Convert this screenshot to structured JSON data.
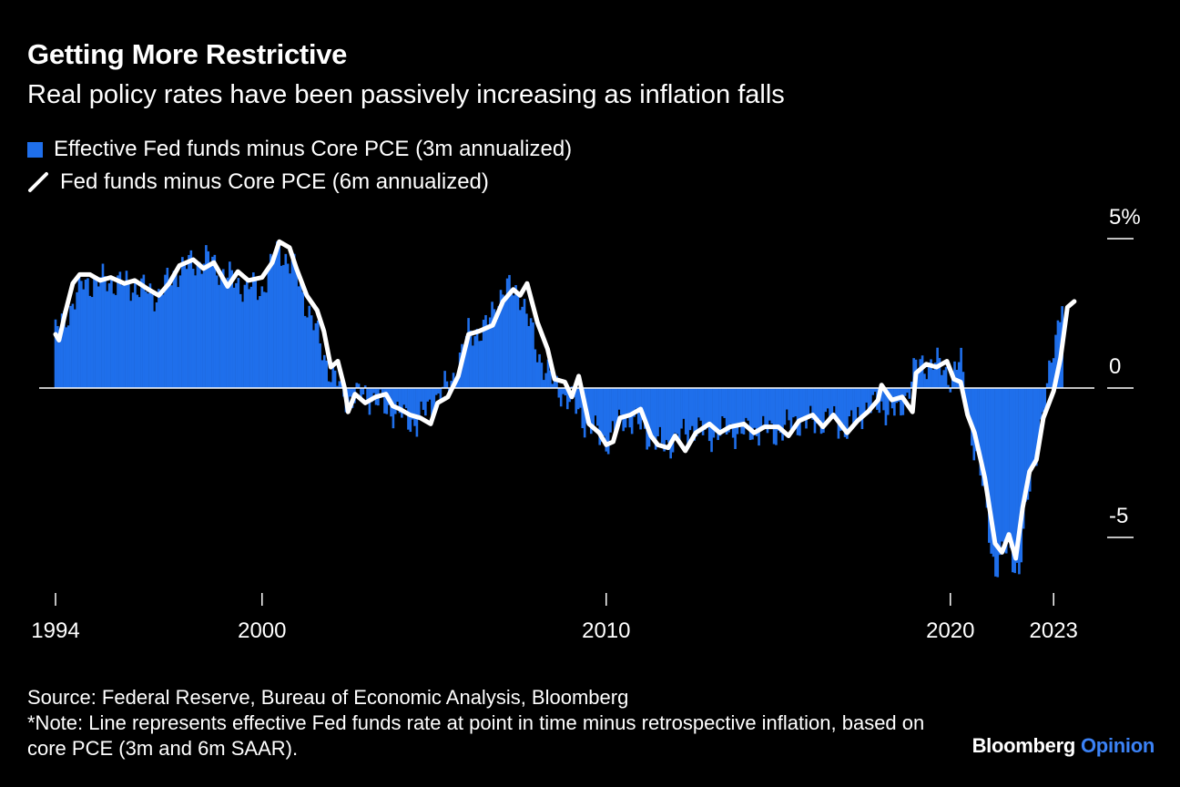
{
  "title": "Getting More Restrictive",
  "subtitle": "Real policy rates have been passively increasing as inflation falls",
  "colors": {
    "background": "#000000",
    "bar": "#1f6feb",
    "line": "#ffffff",
    "brand_accent": "#3b82f6"
  },
  "source": "Source: Federal Reserve, Bureau of Economic Analysis, Bloomberg",
  "note": "*Note: Line represents effective Fed funds rate at point in time minus retrospective inflation, based on core PCE (3m and 6m SAAR).",
  "brand": {
    "name": "Bloomberg",
    "section": "Opinion"
  },
  "chart_data": {
    "type": "bar",
    "legend_placement": "top-left",
    "grid": false,
    "ylim": [
      -6.5,
      5.5
    ],
    "xlim": [
      1993.6,
      2023.7
    ],
    "y_tick_labels": [
      {
        "value": 5,
        "label": "5%"
      },
      {
        "value": 0,
        "label": "0"
      },
      {
        "value": -5,
        "label": "-5"
      }
    ],
    "x_tick_labels": [
      {
        "value": 1994,
        "label": "1994"
      },
      {
        "value": 2000,
        "label": "2000"
      },
      {
        "value": 2010,
        "label": "2010"
      },
      {
        "value": 2020,
        "label": "2020"
      },
      {
        "value": 2023,
        "label": "2023"
      }
    ],
    "series": [
      {
        "name": "Effective Fed funds minus Core PCE (3m annualized)",
        "kind": "bar",
        "step": 0.125,
        "anchors": [
          [
            1994.0,
            1.8
          ],
          [
            1994.4,
            2.6
          ],
          [
            1994.8,
            3.5
          ],
          [
            1995.5,
            3.6
          ],
          [
            1996.3,
            3.4
          ],
          [
            1997.0,
            3.1
          ],
          [
            1997.5,
            3.9
          ],
          [
            1998.0,
            4.2
          ],
          [
            1998.5,
            4.3
          ],
          [
            1999.0,
            3.7
          ],
          [
            1999.5,
            3.4
          ],
          [
            2000.0,
            3.3
          ],
          [
            2000.5,
            4.7
          ],
          [
            2001.0,
            3.8
          ],
          [
            2001.5,
            2.1
          ],
          [
            2002.0,
            0.5
          ],
          [
            2002.5,
            -0.4
          ],
          [
            2003.0,
            -0.2
          ],
          [
            2003.5,
            -0.6
          ],
          [
            2004.0,
            -0.9
          ],
          [
            2004.5,
            -1.2
          ],
          [
            2005.0,
            -0.4
          ],
          [
            2005.5,
            0.2
          ],
          [
            2006.0,
            1.8
          ],
          [
            2006.5,
            2.0
          ],
          [
            2007.0,
            3.3
          ],
          [
            2007.5,
            3.2
          ],
          [
            2008.0,
            1.2
          ],
          [
            2008.5,
            0.1
          ],
          [
            2009.0,
            -0.5
          ],
          [
            2009.5,
            -1.3
          ],
          [
            2010.0,
            -1.8
          ],
          [
            2010.5,
            -1.0
          ],
          [
            2011.0,
            -1.3
          ],
          [
            2011.5,
            -1.9
          ],
          [
            2012.0,
            -1.8
          ],
          [
            2012.5,
            -1.3
          ],
          [
            2013.0,
            -1.6
          ],
          [
            2013.5,
            -1.4
          ],
          [
            2014.0,
            -1.5
          ],
          [
            2014.5,
            -1.4
          ],
          [
            2015.0,
            -1.5
          ],
          [
            2015.5,
            -1.1
          ],
          [
            2016.0,
            -1.2
          ],
          [
            2016.5,
            -1.0
          ],
          [
            2017.0,
            -1.4
          ],
          [
            2017.5,
            -0.7
          ],
          [
            2018.0,
            -0.6
          ],
          [
            2018.5,
            -0.9
          ],
          [
            2019.0,
            0.7
          ],
          [
            2019.5,
            0.9
          ],
          [
            2020.0,
            0.4
          ],
          [
            2020.3,
            0.9
          ],
          [
            2020.6,
            -1.5
          ],
          [
            2021.0,
            -3.6
          ],
          [
            2021.3,
            -6.2
          ],
          [
            2021.7,
            -5.2
          ],
          [
            2022.0,
            -6.3
          ],
          [
            2022.3,
            -3.2
          ],
          [
            2022.7,
            -1.0
          ],
          [
            2023.0,
            1.5
          ],
          [
            2023.3,
            3.2
          ]
        ]
      },
      {
        "name": "Fed funds minus Core PCE (6m annualized)",
        "kind": "line",
        "points": [
          [
            1994.0,
            1.8
          ],
          [
            1994.1,
            1.6
          ],
          [
            1994.3,
            2.6
          ],
          [
            1994.5,
            3.5
          ],
          [
            1994.7,
            3.8
          ],
          [
            1995.0,
            3.8
          ],
          [
            1995.3,
            3.6
          ],
          [
            1995.6,
            3.7
          ],
          [
            1996.0,
            3.5
          ],
          [
            1996.3,
            3.6
          ],
          [
            1996.7,
            3.3
          ],
          [
            1997.0,
            3.1
          ],
          [
            1997.3,
            3.5
          ],
          [
            1997.6,
            4.1
          ],
          [
            1998.0,
            4.3
          ],
          [
            1998.3,
            4.0
          ],
          [
            1998.6,
            4.2
          ],
          [
            1999.0,
            3.4
          ],
          [
            1999.3,
            3.9
          ],
          [
            1999.6,
            3.6
          ],
          [
            2000.0,
            3.7
          ],
          [
            2000.3,
            4.2
          ],
          [
            2000.5,
            4.9
          ],
          [
            2000.8,
            4.7
          ],
          [
            2001.0,
            4.0
          ],
          [
            2001.3,
            3.1
          ],
          [
            2001.6,
            2.6
          ],
          [
            2001.8,
            1.9
          ],
          [
            2002.0,
            0.7
          ],
          [
            2002.2,
            0.9
          ],
          [
            2002.4,
            0.0
          ],
          [
            2002.5,
            -0.8
          ],
          [
            2002.7,
            -0.2
          ],
          [
            2003.0,
            -0.5
          ],
          [
            2003.3,
            -0.3
          ],
          [
            2003.6,
            -0.2
          ],
          [
            2003.8,
            -0.6
          ],
          [
            2004.0,
            -0.7
          ],
          [
            2004.3,
            -0.9
          ],
          [
            2004.6,
            -1.0
          ],
          [
            2004.9,
            -1.2
          ],
          [
            2005.1,
            -0.5
          ],
          [
            2005.4,
            -0.3
          ],
          [
            2005.7,
            0.4
          ],
          [
            2006.0,
            1.8
          ],
          [
            2006.3,
            1.9
          ],
          [
            2006.7,
            2.1
          ],
          [
            2007.0,
            2.9
          ],
          [
            2007.3,
            3.3
          ],
          [
            2007.5,
            3.1
          ],
          [
            2007.7,
            3.5
          ],
          [
            2008.0,
            2.2
          ],
          [
            2008.3,
            1.3
          ],
          [
            2008.5,
            0.3
          ],
          [
            2008.8,
            0.2
          ],
          [
            2009.0,
            -0.3
          ],
          [
            2009.2,
            0.4
          ],
          [
            2009.5,
            -1.2
          ],
          [
            2009.8,
            -1.5
          ],
          [
            2010.0,
            -1.9
          ],
          [
            2010.2,
            -1.8
          ],
          [
            2010.4,
            -1.0
          ],
          [
            2010.7,
            -0.9
          ],
          [
            2011.0,
            -0.7
          ],
          [
            2011.3,
            -1.6
          ],
          [
            2011.5,
            -1.9
          ],
          [
            2011.8,
            -2.0
          ],
          [
            2012.0,
            -1.6
          ],
          [
            2012.3,
            -2.1
          ],
          [
            2012.6,
            -1.5
          ],
          [
            2013.0,
            -1.2
          ],
          [
            2013.3,
            -1.5
          ],
          [
            2013.6,
            -1.3
          ],
          [
            2014.0,
            -1.2
          ],
          [
            2014.3,
            -1.5
          ],
          [
            2014.6,
            -1.3
          ],
          [
            2015.0,
            -1.3
          ],
          [
            2015.3,
            -1.6
          ],
          [
            2015.6,
            -1.1
          ],
          [
            2016.0,
            -0.9
          ],
          [
            2016.3,
            -1.3
          ],
          [
            2016.6,
            -0.9
          ],
          [
            2017.0,
            -1.5
          ],
          [
            2017.3,
            -1.1
          ],
          [
            2017.6,
            -0.8
          ],
          [
            2017.9,
            -0.4
          ],
          [
            2018.0,
            0.1
          ],
          [
            2018.3,
            -0.4
          ],
          [
            2018.6,
            -0.3
          ],
          [
            2018.9,
            -0.8
          ],
          [
            2019.0,
            0.5
          ],
          [
            2019.3,
            0.8
          ],
          [
            2019.6,
            0.7
          ],
          [
            2019.9,
            0.9
          ],
          [
            2020.1,
            0.3
          ],
          [
            2020.3,
            0.2
          ],
          [
            2020.5,
            -0.9
          ],
          [
            2020.7,
            -1.5
          ],
          [
            2021.0,
            -3.0
          ],
          [
            2021.3,
            -5.2
          ],
          [
            2021.5,
            -5.5
          ],
          [
            2021.7,
            -4.9
          ],
          [
            2021.9,
            -5.7
          ],
          [
            2022.1,
            -4.0
          ],
          [
            2022.3,
            -2.8
          ],
          [
            2022.5,
            -2.4
          ],
          [
            2022.7,
            -1.0
          ],
          [
            2023.0,
            -0.1
          ],
          [
            2023.2,
            1.0
          ],
          [
            2023.4,
            2.7
          ],
          [
            2023.6,
            2.9
          ]
        ]
      }
    ]
  }
}
